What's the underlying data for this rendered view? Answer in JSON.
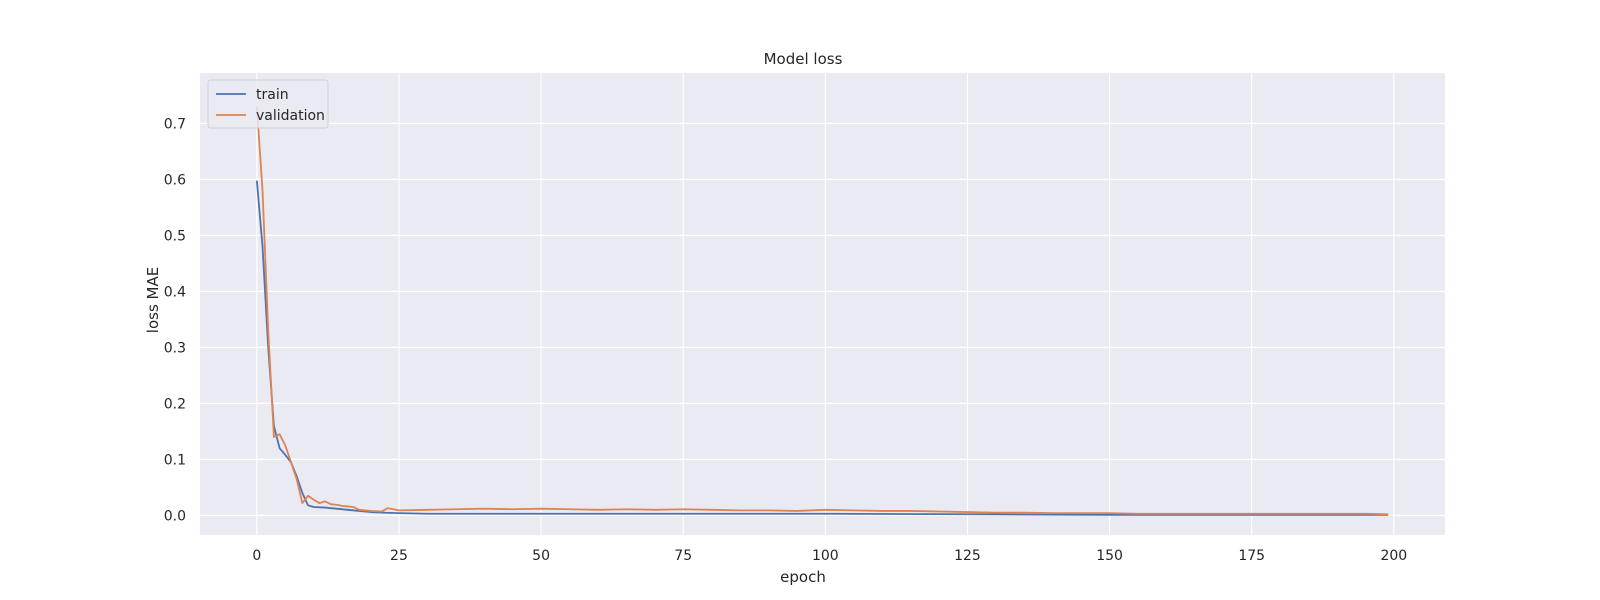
{
  "chart_data": {
    "type": "line",
    "title": "Model loss",
    "xlabel": "epoch",
    "ylabel": "loss MAE",
    "xlim": [
      -10,
      209
    ],
    "ylim": [
      -0.035,
      0.79
    ],
    "xticks": [
      0,
      25,
      50,
      75,
      100,
      125,
      150,
      175,
      200
    ],
    "yticks": [
      0.0,
      0.1,
      0.2,
      0.3,
      0.4,
      0.5,
      0.6,
      0.7
    ],
    "ytick_labels": [
      "0.0",
      "0.1",
      "0.2",
      "0.3",
      "0.4",
      "0.5",
      "0.6",
      "0.7"
    ],
    "grid": true,
    "legend_position": "upper-left",
    "background_color": "#eaeaf2",
    "series": [
      {
        "name": "train",
        "color": "#4c72b0",
        "x": [
          0,
          1,
          2,
          3,
          4,
          5,
          6,
          7,
          8,
          9,
          10,
          12,
          14,
          16,
          18,
          20,
          22,
          25,
          30,
          40,
          50,
          75,
          100,
          125,
          150,
          175,
          199
        ],
        "y": [
          0.598,
          0.48,
          0.3,
          0.16,
          0.12,
          0.108,
          0.095,
          0.07,
          0.04,
          0.018,
          0.015,
          0.014,
          0.012,
          0.01,
          0.008,
          0.006,
          0.005,
          0.004,
          0.003,
          0.003,
          0.003,
          0.003,
          0.003,
          0.002,
          0.001,
          0.001,
          0.001
        ]
      },
      {
        "name": "validation",
        "color": "#dd8452",
        "x": [
          0,
          1,
          2,
          3,
          4,
          5,
          6,
          7,
          8,
          9,
          10,
          11,
          12,
          13,
          14,
          15,
          16,
          17,
          18,
          20,
          22,
          23,
          25,
          30,
          35,
          40,
          45,
          50,
          55,
          60,
          65,
          70,
          75,
          80,
          85,
          90,
          95,
          100,
          105,
          110,
          115,
          120,
          125,
          130,
          135,
          140,
          145,
          150,
          155,
          160,
          165,
          170,
          175,
          180,
          185,
          190,
          195,
          199
        ],
        "y": [
          0.73,
          0.58,
          0.33,
          0.14,
          0.145,
          0.125,
          0.095,
          0.065,
          0.022,
          0.035,
          0.028,
          0.022,
          0.025,
          0.02,
          0.019,
          0.017,
          0.016,
          0.015,
          0.01,
          0.008,
          0.007,
          0.013,
          0.009,
          0.01,
          0.011,
          0.012,
          0.011,
          0.012,
          0.011,
          0.01,
          0.011,
          0.01,
          0.011,
          0.01,
          0.009,
          0.009,
          0.008,
          0.01,
          0.009,
          0.008,
          0.008,
          0.007,
          0.006,
          0.005,
          0.005,
          0.004,
          0.004,
          0.004,
          0.003,
          0.003,
          0.003,
          0.003,
          0.003,
          0.003,
          0.003,
          0.003,
          0.003,
          0.002
        ]
      }
    ]
  }
}
